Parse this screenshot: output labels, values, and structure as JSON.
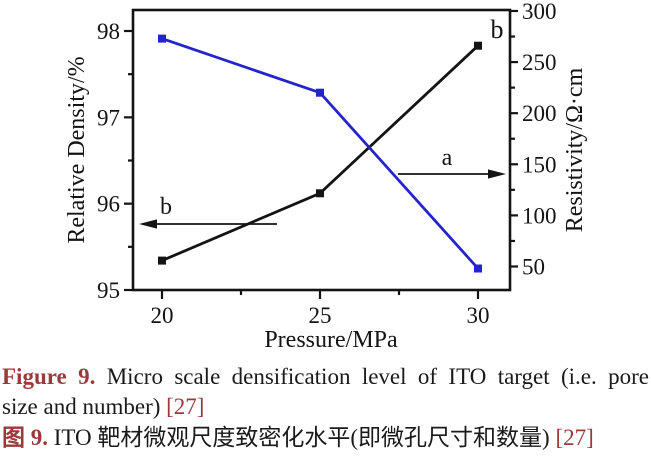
{
  "chart_data": {
    "type": "line",
    "title": "",
    "x": [
      20,
      25,
      30
    ],
    "xlabel": "Pressure/MPa",
    "corner_label": "b",
    "grid": false,
    "legend": "none (curves identified by arrows a and b)",
    "left_axis": {
      "label": "Relative Density/%",
      "ticks": [
        95,
        96,
        97,
        98
      ],
      "range": [
        95,
        98.25
      ]
    },
    "right_axis": {
      "label": "Resistivity/Ω·cm",
      "ticks": [
        50,
        100,
        150,
        200,
        250,
        300
      ],
      "range": [
        27,
        301
      ]
    },
    "series": [
      {
        "name": "b",
        "quantity": "Relative Density/%",
        "axis": "left",
        "color": "#141414",
        "marker": "square",
        "values": [
          95.34,
          96.12,
          97.83
        ]
      },
      {
        "name": "a",
        "quantity": "Resistivity/Ω·cm",
        "axis": "right",
        "color": "#2424cd",
        "marker": "square",
        "values": [
          273,
          220,
          48
        ]
      }
    ],
    "annotations": [
      {
        "label": "b",
        "points": "left"
      },
      {
        "label": "a",
        "points": "right"
      }
    ]
  },
  "caption": {
    "en": {
      "label": "Figure 9.",
      "line1": "Micro scale densification level of ITO target (i.e. pore",
      "line2": "size and number)",
      "ref": "[27]"
    },
    "zh": {
      "label": "图 9.",
      "text": "ITO 靶材微观尺度致密化水平(即微孔尺寸和数量)",
      "ref": "[27]"
    }
  },
  "colors": {
    "series_black": "#141414",
    "series_blue": "#2424cd",
    "caption_red": "#993b3b"
  }
}
